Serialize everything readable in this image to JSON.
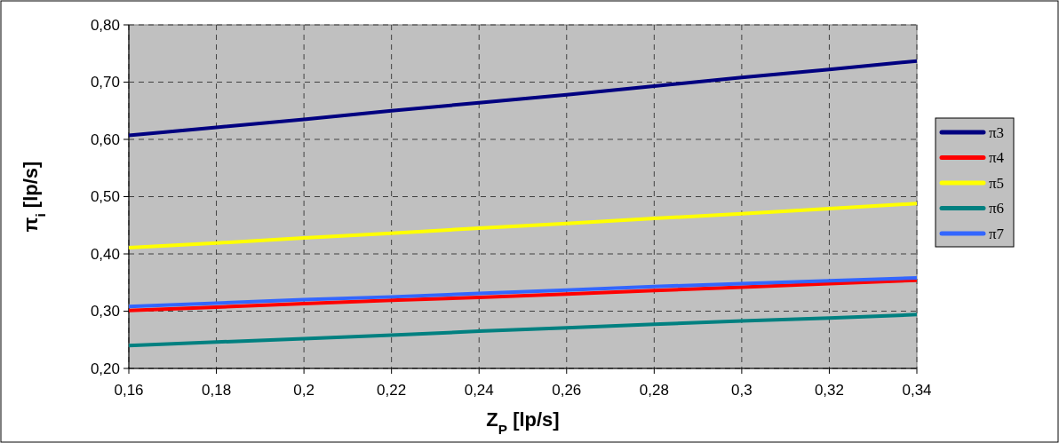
{
  "chart_data": {
    "type": "line",
    "xlabel": "Z$_{P}$ [lp/s]",
    "ylabel": "π$_{i}$ [lp/s]",
    "x": [
      0.16,
      0.18,
      0.2,
      0.22,
      0.24,
      0.26,
      0.28,
      0.3,
      0.32,
      0.34
    ],
    "series": [
      {
        "name": "π3",
        "color": "#000080",
        "values": [
          0.607,
          0.621,
          0.635,
          0.65,
          0.664,
          0.678,
          0.693,
          0.708,
          0.722,
          0.737
        ]
      },
      {
        "name": "π4",
        "color": "#ff0000",
        "values": [
          0.301,
          0.307,
          0.313,
          0.319,
          0.324,
          0.33,
          0.336,
          0.342,
          0.348,
          0.354
        ]
      },
      {
        "name": "π5",
        "color": "#ffff00",
        "values": [
          0.411,
          0.419,
          0.428,
          0.436,
          0.445,
          0.453,
          0.462,
          0.47,
          0.479,
          0.488
        ]
      },
      {
        "name": "π6",
        "color": "#008080",
        "values": [
          0.24,
          0.246,
          0.252,
          0.258,
          0.265,
          0.271,
          0.277,
          0.283,
          0.288,
          0.294
        ]
      },
      {
        "name": "π7",
        "color": "#3366ff",
        "values": [
          0.308,
          0.314,
          0.32,
          0.325,
          0.331,
          0.337,
          0.343,
          0.348,
          0.353,
          0.358
        ]
      }
    ],
    "xlim": [
      0.16,
      0.34
    ],
    "xticks": [
      {
        "value": 0.16,
        "label": "0,16"
      },
      {
        "value": 0.18,
        "label": "0,18"
      },
      {
        "value": 0.2,
        "label": "0,2"
      },
      {
        "value": 0.22,
        "label": "0,22"
      },
      {
        "value": 0.24,
        "label": "0,24"
      },
      {
        "value": 0.26,
        "label": "0,26"
      },
      {
        "value": 0.28,
        "label": "0,28"
      },
      {
        "value": 0.3,
        "label": "0,3"
      },
      {
        "value": 0.32,
        "label": "0,32"
      },
      {
        "value": 0.34,
        "label": "0,34"
      }
    ],
    "ylim": [
      0.2,
      0.8
    ],
    "yticks": [
      {
        "value": 0.2,
        "label": "0,20"
      },
      {
        "value": 0.3,
        "label": "0,30"
      },
      {
        "value": 0.4,
        "label": "0,40"
      },
      {
        "value": 0.5,
        "label": "0,50"
      },
      {
        "value": 0.6,
        "label": "0,60"
      },
      {
        "value": 0.7,
        "label": "0,70"
      },
      {
        "value": 0.8,
        "label": "0,80"
      }
    ],
    "grid": true,
    "legend": "right",
    "line_style": "solid",
    "marker": "none"
  }
}
